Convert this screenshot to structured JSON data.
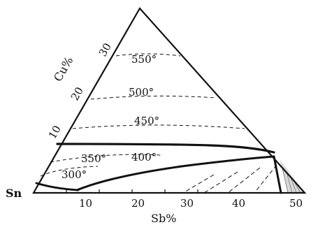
{
  "corner_label": "Sn",
  "axis_cu": {
    "title": "Cu%",
    "ticks": [
      "10",
      "20",
      "30"
    ]
  },
  "axis_sb": {
    "title": "Sb%",
    "ticks": [
      "10",
      "20",
      "30",
      "40",
      "50"
    ]
  },
  "isotherms": [
    "300°",
    "350°",
    "400°",
    "450°",
    "500°",
    "550°"
  ],
  "colors": {
    "line": "#111111",
    "hatch": "#777777",
    "background": "#ffffff"
  }
}
